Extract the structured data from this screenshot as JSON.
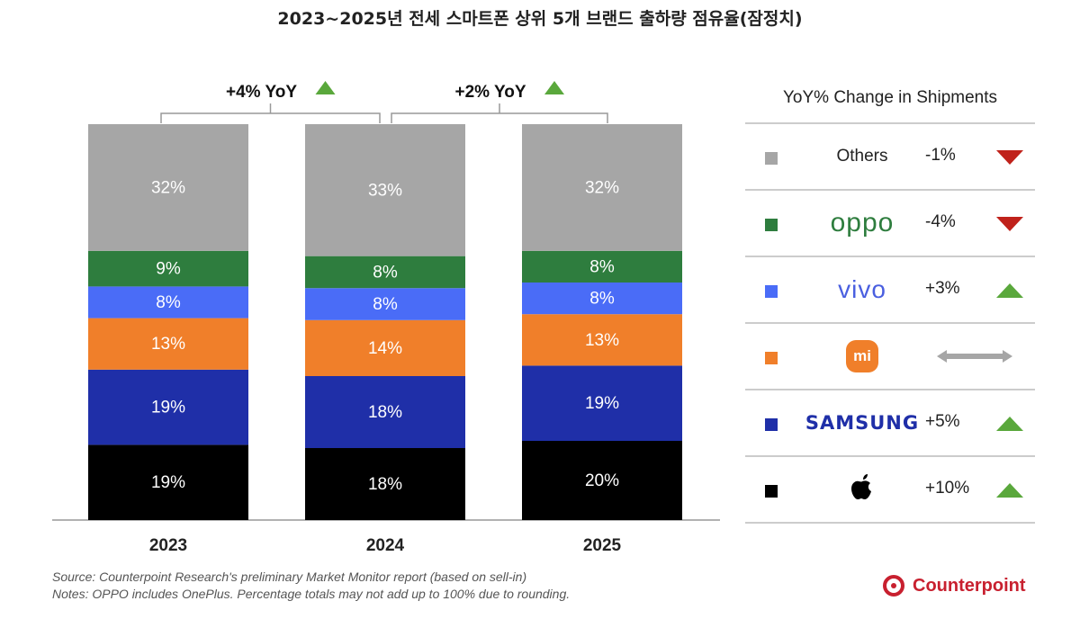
{
  "title": "2023~2025년 전세 스마트폰 상위 5개 브랜드 출하량 점유율(잠정치)",
  "chart_data": {
    "type": "bar",
    "stacked": true,
    "categories": [
      "2023",
      "2024",
      "2025"
    ],
    "series": [
      {
        "name": "Apple",
        "color": "#000000",
        "values": [
          19,
          18,
          20
        ]
      },
      {
        "name": "Samsung",
        "color": "#1f2fa8",
        "values": [
          19,
          18,
          19
        ]
      },
      {
        "name": "Xiaomi",
        "color": "#f07f2a",
        "values": [
          13,
          14,
          13
        ]
      },
      {
        "name": "vivo",
        "color": "#4a6cf7",
        "values": [
          8,
          8,
          8
        ]
      },
      {
        "name": "OPPO",
        "color": "#2e7d3e",
        "values": [
          9,
          8,
          8
        ]
      },
      {
        "name": "Others",
        "color": "#a6a6a6",
        "values": [
          32,
          33,
          32
        ]
      }
    ],
    "value_format": "{v}%",
    "yoy_annotations": [
      {
        "from": "2023",
        "to": "2024",
        "label": "+4% YoY",
        "direction": "up"
      },
      {
        "from": "2024",
        "to": "2025",
        "label": "+2% YoY",
        "direction": "up"
      }
    ]
  },
  "legend": {
    "title": "YoY% Change in Shipments",
    "rows": [
      {
        "brand": "Others",
        "logo": "text",
        "color": "#a6a6a6",
        "change": "-1%",
        "direction": "down"
      },
      {
        "brand": "oppo",
        "logo": "oppo-logo",
        "color": "#2e7d3e",
        "change": "-4%",
        "direction": "down"
      },
      {
        "brand": "vivo",
        "logo": "vivo-logo",
        "color": "#4a6cf7",
        "change": "+3%",
        "direction": "up"
      },
      {
        "brand": "mi",
        "logo": "xiaomi-logo",
        "color": "#f07f2a",
        "change": "",
        "direction": "flat"
      },
      {
        "brand": "SAMSUNG",
        "logo": "samsung-logo",
        "color": "#1f2fa8",
        "change": "+5%",
        "direction": "up"
      },
      {
        "brand": "Apple",
        "logo": "apple-logo",
        "color": "#000000",
        "change": "+10%",
        "direction": "up"
      }
    ]
  },
  "notes": {
    "source": "Source: Counterpoint Research's preliminary Market Monitor report (based on sell-in)",
    "notes": "Notes: OPPO includes OnePlus. Percentage totals may not add up to 100% due to rounding."
  },
  "brand_logo": "Counterpoint",
  "colors": {
    "up": "#5aa83c",
    "down": "#c0221b",
    "flat": "#a6a6a6"
  }
}
